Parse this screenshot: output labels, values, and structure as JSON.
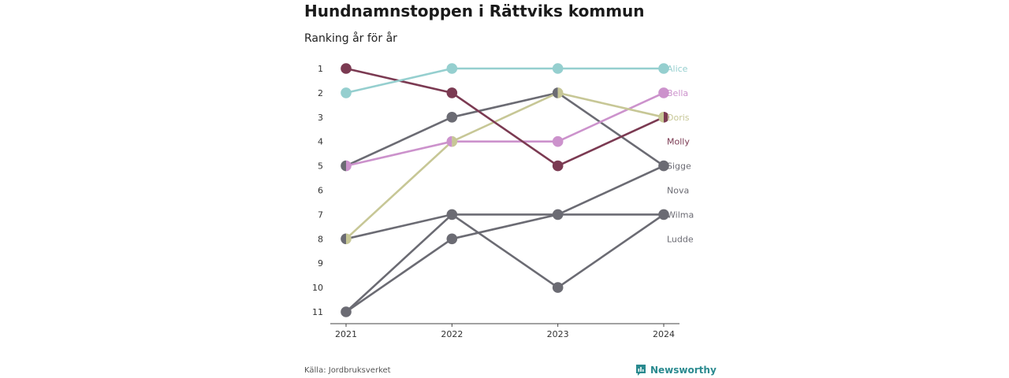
{
  "title": "Hundnamnstoppen i Rättviks kommun",
  "subtitle": "Ranking år för år",
  "source": "Källa: Jordbruksverket",
  "brand": {
    "name": "Newsworthy",
    "icon": "newsworthy-logo-icon",
    "color": "#2a8a8f"
  },
  "chart_data": {
    "type": "line",
    "subtype": "bump",
    "x": [
      "2021",
      "2022",
      "2023",
      "2024"
    ],
    "y_ticks": [
      "1",
      "2",
      "3",
      "4",
      "5",
      "6",
      "7",
      "8",
      "9",
      "10",
      "11"
    ],
    "ylim": [
      1,
      11
    ],
    "y_reversed": true,
    "grid": false,
    "legend": "end-labels",
    "series": [
      {
        "name": "Sigge",
        "color": "#6b6b73",
        "values": [
          5,
          3,
          2,
          5
        ]
      },
      {
        "name": "Nova",
        "color": "#6b6b73",
        "values": [
          11,
          8,
          7,
          5
        ]
      },
      {
        "name": "Wilma",
        "color": "#6b6b73",
        "values": [
          8,
          7,
          7,
          7
        ]
      },
      {
        "name": "Ludde",
        "color": "#6b6b73",
        "values": [
          11,
          7,
          10,
          7
        ]
      },
      {
        "name": "Bella",
        "color": "#cc92cc",
        "values": [
          5,
          4,
          4,
          2
        ]
      },
      {
        "name": "Doris",
        "color": "#c7c796",
        "values": [
          8,
          4,
          2,
          3
        ]
      },
      {
        "name": "Molly",
        "color": "#7b3a52",
        "values": [
          1,
          2,
          5,
          3
        ]
      },
      {
        "name": "Alice",
        "color": "#95cfcf",
        "values": [
          2,
          1,
          1,
          1
        ]
      }
    ]
  }
}
